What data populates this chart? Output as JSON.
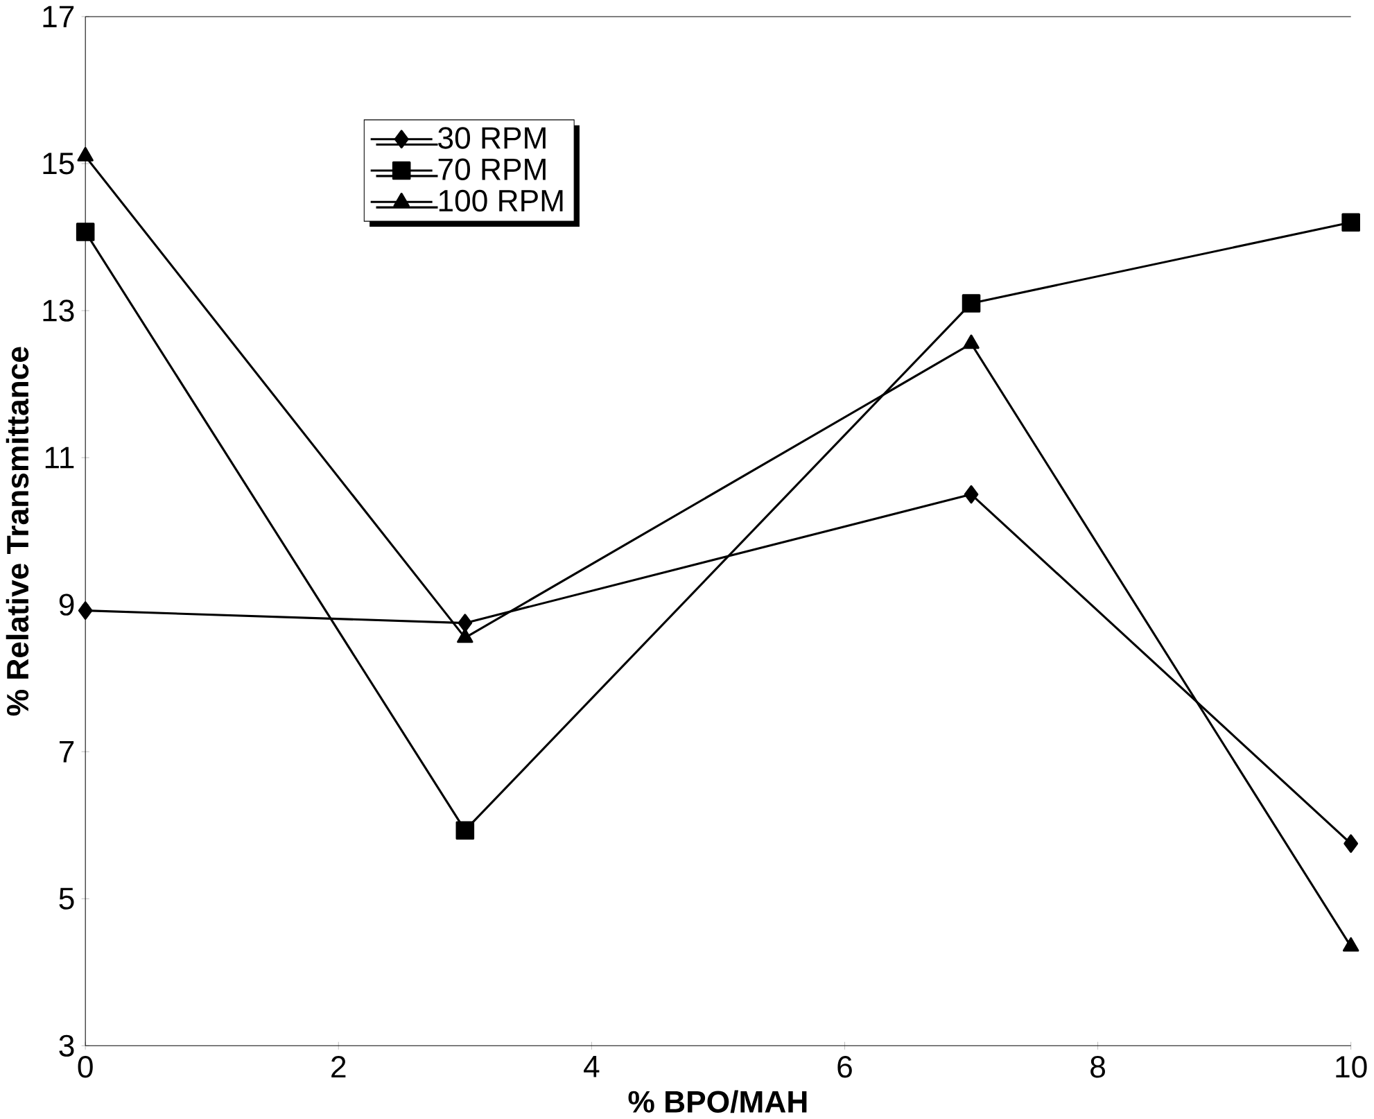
{
  "chart_data": {
    "type": "line",
    "xlabel": "% BPO/MAH",
    "ylabel": "% Relative Transmittance",
    "x": [
      0,
      3,
      7,
      10
    ],
    "series": [
      {
        "name": "30 RPM",
        "color": "#000000",
        "marker": "diamond",
        "values": [
          8.92,
          8.75,
          10.5,
          5.75
        ]
      },
      {
        "name": "70 RPM",
        "color": "#000000",
        "marker": "square",
        "values": [
          14.07,
          5.93,
          13.1,
          14.2
        ]
      },
      {
        "name": "100 RPM",
        "color": "#000000",
        "marker": "triangle",
        "values": [
          15.1,
          8.55,
          12.55,
          4.35
        ]
      }
    ],
    "xlim": [
      0,
      10
    ],
    "xticks": [
      0,
      2,
      4,
      6,
      8,
      10
    ],
    "ylim": [
      3,
      17
    ],
    "yticks": [
      3,
      5,
      7,
      9,
      11,
      13,
      15,
      17
    ],
    "grid": false,
    "legend": "top left",
    "line_style": "solid"
  }
}
